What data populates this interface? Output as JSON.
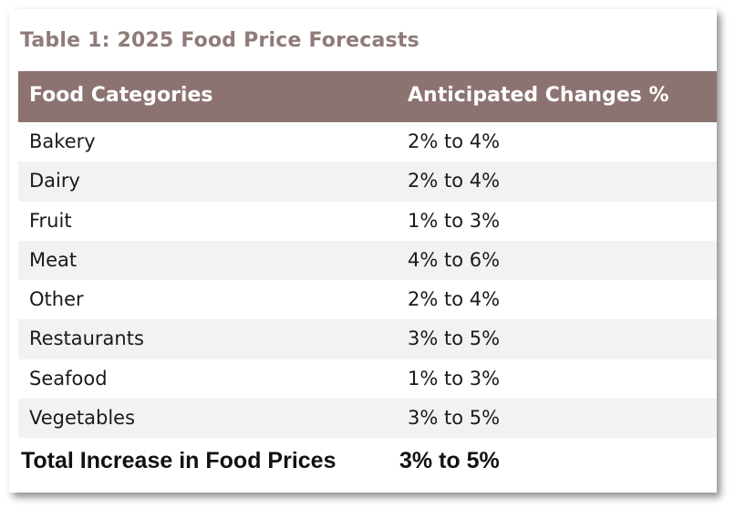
{
  "table": {
    "title": "Table 1: 2025 Food Price Forecasts",
    "headers": [
      "Food Categories",
      "Anticipated Changes %"
    ],
    "rows": [
      {
        "category": "Bakery",
        "change": "2% to 4%"
      },
      {
        "category": "Dairy",
        "change": "2% to 4%"
      },
      {
        "category": "Fruit",
        "change": "1% to 3%"
      },
      {
        "category": "Meat",
        "change": "4% to 6%"
      },
      {
        "category": "Other",
        "change": "2% to 4%"
      },
      {
        "category": "Restaurants",
        "change": "3% to 5%"
      },
      {
        "category": "Seafood",
        "change": "1% to 3%"
      },
      {
        "category": "Vegetables",
        "change": "3% to 5%"
      }
    ],
    "total": {
      "label": "Total Increase in Food Prices",
      "value": "3% to 5%"
    }
  },
  "colors": {
    "header_bg": "#8c7371",
    "title": "#8f7b79",
    "stripe": "#f2f2f2"
  }
}
